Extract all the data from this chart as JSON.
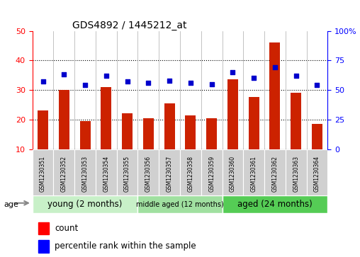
{
  "title": "GDS4892 / 1445212_at",
  "samples": [
    "GSM1230351",
    "GSM1230352",
    "GSM1230353",
    "GSM1230354",
    "GSM1230355",
    "GSM1230356",
    "GSM1230357",
    "GSM1230358",
    "GSM1230359",
    "GSM1230360",
    "GSM1230361",
    "GSM1230362",
    "GSM1230363",
    "GSM1230364"
  ],
  "counts": [
    23,
    30,
    19.5,
    31,
    22,
    20.5,
    25.5,
    21.5,
    20.5,
    33.5,
    27.5,
    46,
    29,
    18.5
  ],
  "percentile_right": [
    57,
    63,
    54,
    62,
    57,
    56,
    58,
    56,
    55,
    65,
    60,
    69,
    62,
    54
  ],
  "groups": [
    {
      "label": "young (2 months)",
      "start": 0,
      "end": 5,
      "color": "#c8f0c8"
    },
    {
      "label": "middle aged (12 months)",
      "start": 5,
      "end": 9,
      "color": "#a0e0a0"
    },
    {
      "label": "aged (24 months)",
      "start": 9,
      "end": 14,
      "color": "#55cc55"
    }
  ],
  "ylim_left": [
    10,
    50
  ],
  "ylim_right": [
    0,
    100
  ],
  "yticks_left": [
    10,
    20,
    30,
    40,
    50
  ],
  "yticks_right": [
    0,
    25,
    50,
    75,
    100
  ],
  "ytick_right_labels": [
    "0",
    "25",
    "50",
    "75",
    "100%"
  ],
  "bar_color": "#cc2200",
  "dot_color": "#0000cc",
  "bar_width": 0.5,
  "plot_bg": "#ffffff",
  "fig_bg": "#ffffff",
  "grid_yticks": [
    20,
    30,
    40
  ],
  "title_fontsize": 10,
  "label_fontsize": 7.5,
  "tick_fontsize": 8
}
